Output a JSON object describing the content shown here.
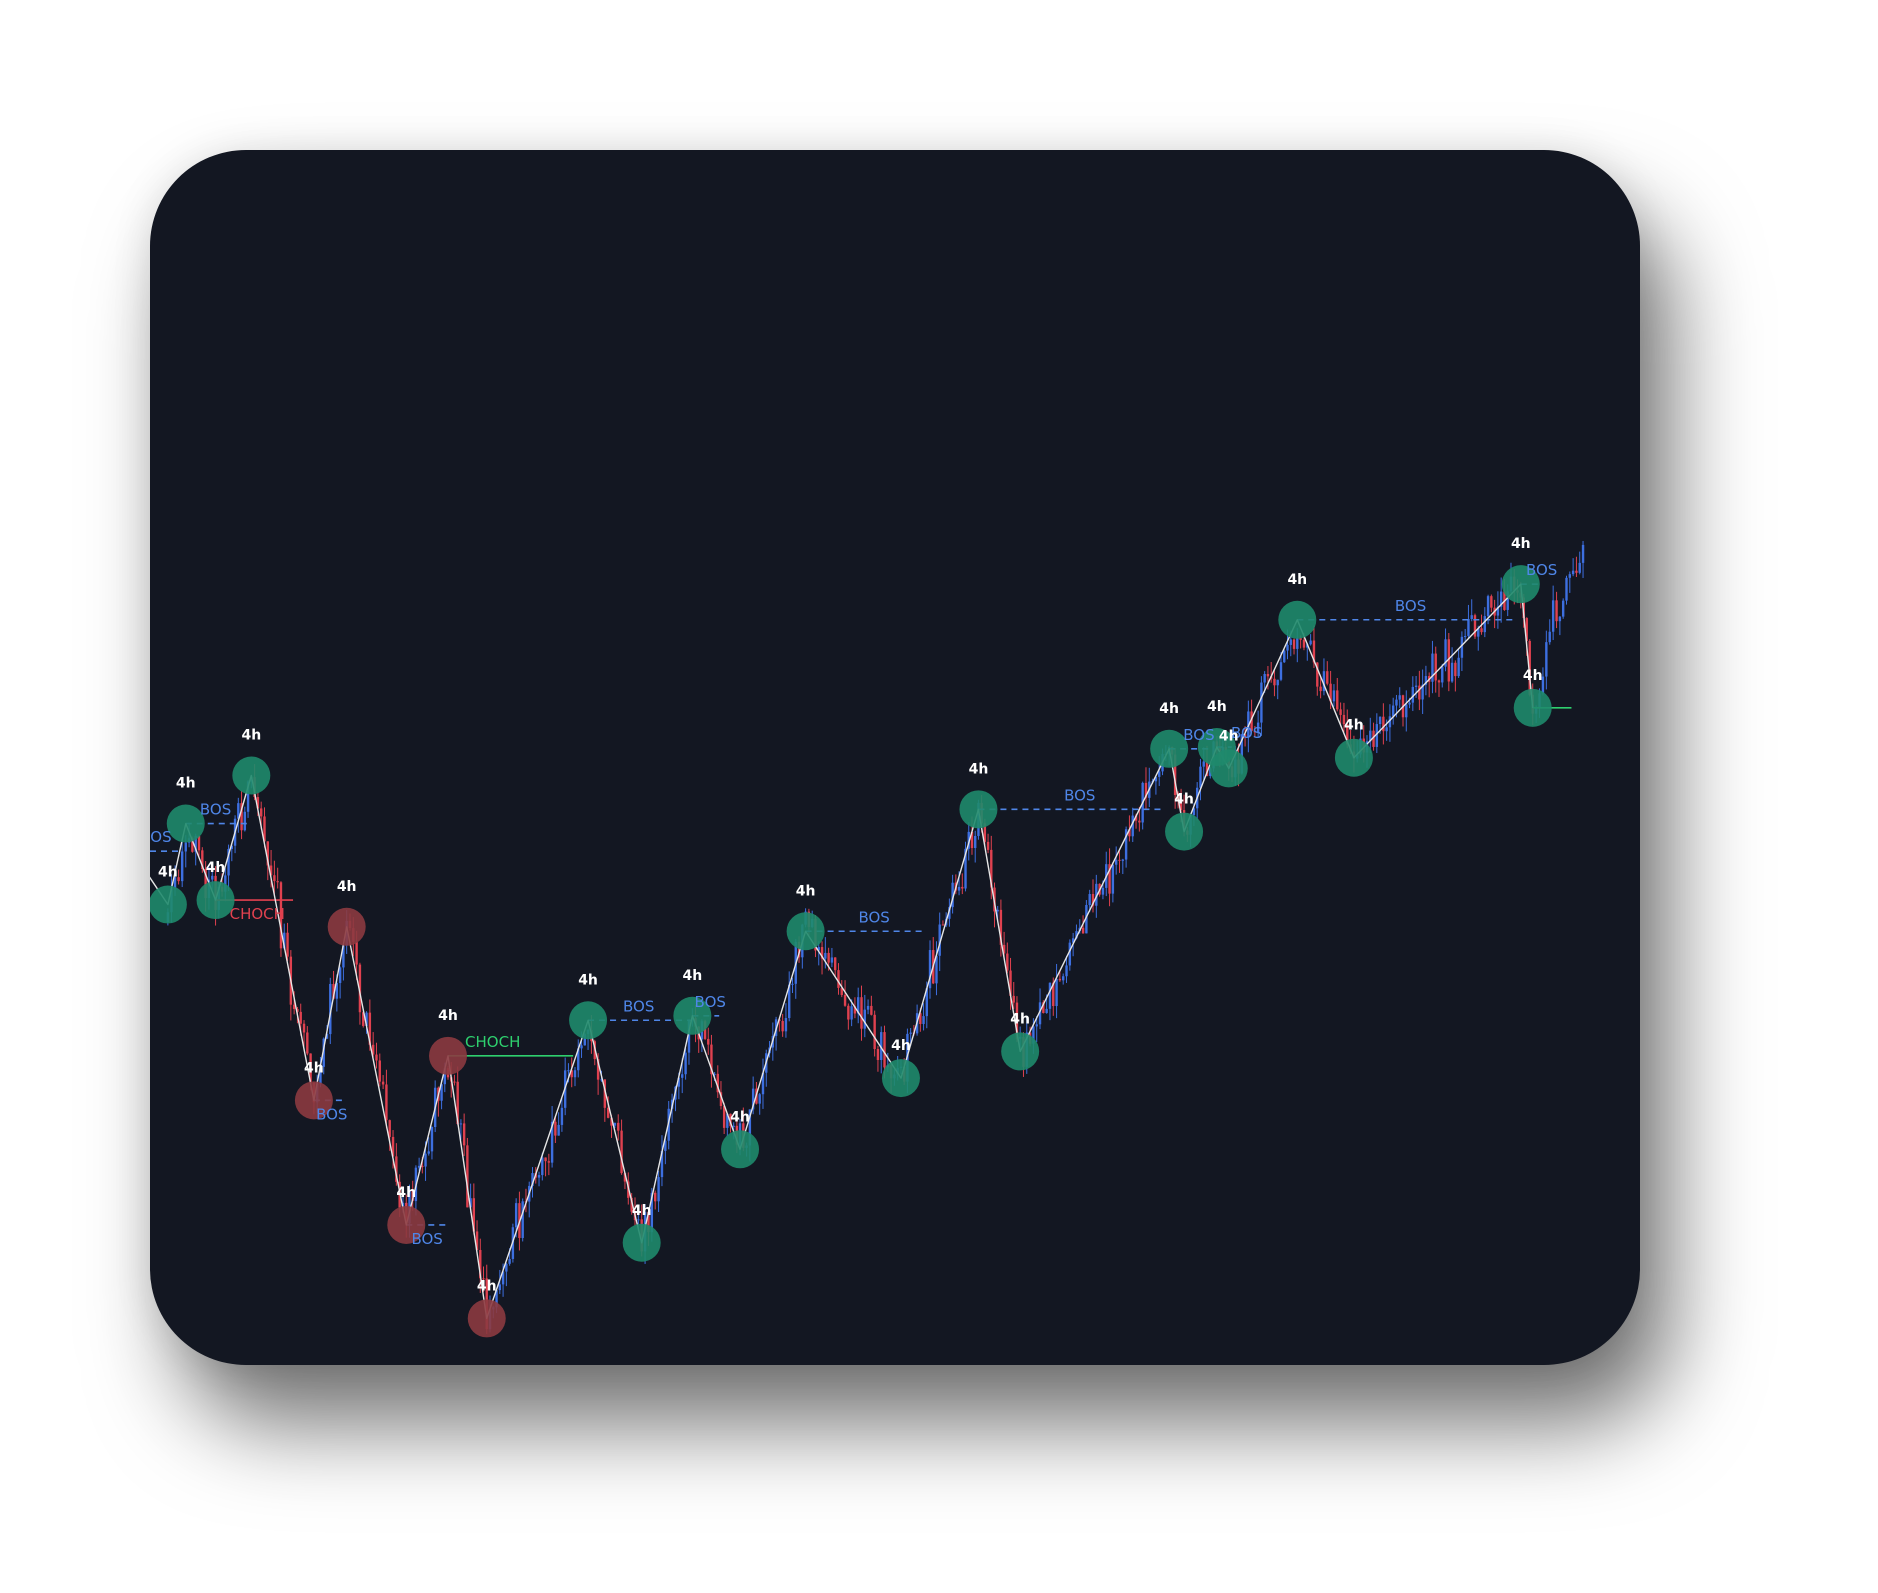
{
  "chart_data": {
    "type": "candlestick",
    "title": "",
    "xlabel": "",
    "ylabel": "",
    "grid": false,
    "legend": "none",
    "colors": {
      "background": "#131722",
      "bull_candle": "#3d6fe0",
      "bear_candle": "#e0414f",
      "zigzag": "#e6e6e6",
      "bos_line": "#4f86e8",
      "choch_bear": "#e0414f",
      "choch_bull": "#2ed06e",
      "pivot_bull": "#1f8a6c",
      "pivot_bear": "#8c3a40",
      "timeframe_label": "#ffffff"
    },
    "ylim": [
      0,
      100
    ],
    "xlim": [
      0,
      100
    ],
    "pivots": [
      {
        "x": 1.2,
        "y": 40.5,
        "type": "low",
        "color": "bull",
        "tf": "4h"
      },
      {
        "x": 2.4,
        "y": 49.6,
        "type": "high",
        "color": "bull",
        "tf": "4h"
      },
      {
        "x": 4.4,
        "y": 41.0,
        "type": "low",
        "color": "bull",
        "tf": "4h"
      },
      {
        "x": 6.8,
        "y": 55.0,
        "type": "high",
        "color": "bull",
        "tf": "4h"
      },
      {
        "x": 11.0,
        "y": 18.5,
        "type": "low",
        "color": "bear",
        "tf": "4h"
      },
      {
        "x": 13.2,
        "y": 38.0,
        "type": "high",
        "color": "bear",
        "tf": "4h"
      },
      {
        "x": 17.2,
        "y": 4.5,
        "type": "low",
        "color": "bear",
        "tf": "4h"
      },
      {
        "x": 20.0,
        "y": 23.5,
        "type": "high",
        "color": "bear",
        "tf": "4h"
      },
      {
        "x": 22.6,
        "y": -6.0,
        "type": "low",
        "color": "bear",
        "tf": "4h"
      },
      {
        "x": 29.4,
        "y": 27.5,
        "type": "high",
        "color": "bull",
        "tf": "4h"
      },
      {
        "x": 33.0,
        "y": 2.5,
        "type": "low",
        "color": "bull",
        "tf": "4h"
      },
      {
        "x": 36.4,
        "y": 28.0,
        "type": "high",
        "color": "bull",
        "tf": "4h"
      },
      {
        "x": 39.6,
        "y": 13.0,
        "type": "low",
        "color": "bull",
        "tf": "4h"
      },
      {
        "x": 44.0,
        "y": 37.5,
        "type": "high",
        "color": "bull",
        "tf": "4h"
      },
      {
        "x": 50.4,
        "y": 21.0,
        "type": "low",
        "color": "bull",
        "tf": "4h"
      },
      {
        "x": 55.6,
        "y": 51.2,
        "type": "high",
        "color": "bull",
        "tf": "4h"
      },
      {
        "x": 58.4,
        "y": 24.0,
        "type": "low",
        "color": "bull",
        "tf": "4h"
      },
      {
        "x": 68.4,
        "y": 58.0,
        "type": "high",
        "color": "bull",
        "tf": "4h"
      },
      {
        "x": 69.4,
        "y": 48.7,
        "type": "low",
        "color": "bull",
        "tf": "4h"
      },
      {
        "x": 71.6,
        "y": 58.2,
        "type": "high",
        "color": "bull",
        "tf": "4h"
      },
      {
        "x": 72.4,
        "y": 55.8,
        "type": "low",
        "color": "bull",
        "tf": "4h"
      },
      {
        "x": 77.0,
        "y": 72.5,
        "type": "high",
        "color": "bull",
        "tf": "4h"
      },
      {
        "x": 80.8,
        "y": 57.0,
        "type": "low",
        "color": "bull",
        "tf": "4h"
      },
      {
        "x": 92.0,
        "y": 76.5,
        "type": "high",
        "color": "bull",
        "tf": "4h"
      },
      {
        "x": 92.8,
        "y": 62.6,
        "type": "low",
        "color": "bull",
        "tf": "4h"
      }
    ],
    "structure_lines": [
      {
        "label": "BOS",
        "kind": "bos",
        "x1": 0.0,
        "x2": 2.0,
        "y": 46.5,
        "label_x": 0.4
      },
      {
        "label": "BOS",
        "kind": "bos",
        "x1": 2.4,
        "x2": 6.8,
        "y": 49.6,
        "label_x": 4.4
      },
      {
        "label": "CHOCH",
        "kind": "choch-bear",
        "x1": 4.4,
        "x2": 9.6,
        "y": 41.0,
        "label_x": 7.2
      },
      {
        "label": "BOS",
        "kind": "bos",
        "x1": 11.0,
        "x2": 13.2,
        "y": 18.5,
        "label_x": 12.2
      },
      {
        "label": "BOS",
        "kind": "bos",
        "x1": 17.2,
        "x2": 20.0,
        "y": 4.5,
        "label_x": 18.6
      },
      {
        "label": "CHOCH",
        "kind": "choch-bull",
        "x1": 20.0,
        "x2": 28.4,
        "y": 23.5,
        "label_x": 23.0
      },
      {
        "label": "BOS",
        "kind": "bos",
        "x1": 29.4,
        "x2": 36.4,
        "y": 27.5,
        "label_x": 32.8
      },
      {
        "label": "BOS",
        "kind": "bos",
        "x1": 36.4,
        "x2": 38.2,
        "y": 28.0,
        "label_x": 37.6
      },
      {
        "label": "BOS",
        "kind": "bos",
        "x1": 44.0,
        "x2": 51.8,
        "y": 37.5,
        "label_x": 48.6
      },
      {
        "label": "BOS",
        "kind": "bos",
        "x1": 55.6,
        "x2": 68.0,
        "y": 51.2,
        "label_x": 62.4
      },
      {
        "label": "BOS",
        "kind": "bos",
        "x1": 68.4,
        "x2": 71.2,
        "y": 58.0,
        "label_x": 70.4
      },
      {
        "label": "BOS",
        "kind": "bos",
        "x1": 71.6,
        "x2": 72.6,
        "y": 58.2,
        "label_x": 73.6
      },
      {
        "label": "BOS",
        "kind": "bos",
        "x1": 77.0,
        "x2": 91.6,
        "y": 72.5,
        "label_x": 84.6
      },
      {
        "label": "BOS",
        "kind": "bos",
        "x1": 92.0,
        "x2": 93.2,
        "y": 76.5,
        "label_x": 93.4
      },
      {
        "label": "",
        "kind": "choch-bull",
        "x1": 92.8,
        "x2": 95.4,
        "y": 62.6,
        "label_x": 0
      }
    ]
  }
}
